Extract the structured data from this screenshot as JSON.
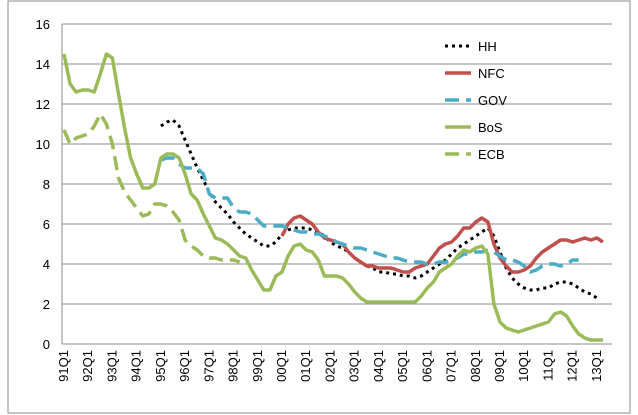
{
  "chart_data": {
    "type": "line",
    "categories": [
      "91Q1",
      null,
      null,
      null,
      "92Q1",
      null,
      null,
      null,
      "93Q1",
      null,
      null,
      null,
      "94Q1",
      null,
      null,
      null,
      "95Q1",
      null,
      null,
      null,
      "96Q1",
      null,
      null,
      null,
      "97Q1",
      null,
      null,
      null,
      "98Q1",
      null,
      null,
      null,
      "99Q1",
      null,
      null,
      null,
      "00Q1",
      null,
      null,
      null,
      "01Q1",
      null,
      null,
      null,
      "02Q1",
      null,
      null,
      null,
      "03Q1",
      null,
      null,
      null,
      "04Q1",
      null,
      null,
      null,
      "05Q1",
      null,
      null,
      null,
      "06Q1",
      null,
      null,
      null,
      "07Q1",
      null,
      null,
      null,
      "08Q1",
      null,
      null,
      null,
      "09Q1",
      null,
      null,
      null,
      "10Q1",
      null,
      null,
      null,
      "11Q1",
      null,
      null,
      null,
      "12Q1",
      null,
      null,
      null,
      "13Q1",
      null
    ],
    "ylim": [
      0,
      16
    ],
    "yticks": [
      0,
      2,
      4,
      6,
      8,
      10,
      12,
      14,
      16
    ],
    "grid": true,
    "legend": "top-right",
    "series": [
      {
        "name": "HH",
        "color": "#000000",
        "style": "dotted",
        "values": [
          null,
          null,
          null,
          null,
          null,
          null,
          null,
          null,
          null,
          null,
          null,
          null,
          null,
          null,
          null,
          null,
          10.9,
          11.1,
          11.2,
          10.9,
          10.2,
          9.5,
          8.8,
          8.2,
          7.6,
          7.1,
          6.8,
          6.5,
          6.1,
          5.8,
          5.5,
          5.3,
          5.1,
          4.9,
          4.9,
          5.1,
          5.5,
          5.7,
          5.8,
          5.8,
          5.8,
          5.7,
          5.6,
          5.4,
          5.1,
          4.9,
          4.8,
          4.6,
          4.3,
          4.1,
          3.9,
          3.8,
          3.6,
          3.6,
          3.5,
          3.5,
          3.4,
          3.4,
          3.3,
          3.4,
          3.6,
          3.8,
          4.0,
          4.2,
          4.5,
          4.8,
          5.0,
          5.2,
          5.4,
          5.6,
          5.8,
          5.4,
          4.6,
          3.8,
          3.3,
          3.0,
          2.8,
          2.7,
          2.7,
          2.8,
          2.8,
          3.0,
          3.1,
          3.1,
          3.0,
          2.8,
          2.6,
          2.5,
          2.3,
          null
        ]
      },
      {
        "name": "NFC",
        "color": "#c0504d",
        "style": "solid",
        "values": [
          null,
          null,
          null,
          null,
          null,
          null,
          null,
          null,
          null,
          null,
          null,
          null,
          null,
          null,
          null,
          null,
          null,
          null,
          null,
          null,
          null,
          null,
          null,
          null,
          null,
          null,
          null,
          null,
          null,
          null,
          null,
          null,
          null,
          null,
          null,
          null,
          5.4,
          6.0,
          6.3,
          6.4,
          6.2,
          6.0,
          5.6,
          5.3,
          5.2,
          5.1,
          5.0,
          4.6,
          4.3,
          4.1,
          3.9,
          3.9,
          3.8,
          3.8,
          3.8,
          3.7,
          3.6,
          3.6,
          3.8,
          3.9,
          4.0,
          4.4,
          4.8,
          5.0,
          5.1,
          5.4,
          5.8,
          5.8,
          6.1,
          6.3,
          6.1,
          5.0,
          4.3,
          3.9,
          3.6,
          3.6,
          3.7,
          3.9,
          4.3,
          4.6,
          4.8,
          5.0,
          5.2,
          5.2,
          5.1,
          5.2,
          5.3,
          5.2,
          5.3,
          5.1
        ]
      },
      {
        "name": "GOV",
        "color": "#4bacc6",
        "style": "dashed",
        "values": [
          null,
          null,
          null,
          null,
          null,
          null,
          null,
          null,
          null,
          null,
          null,
          null,
          null,
          null,
          null,
          null,
          9.2,
          9.3,
          9.3,
          9.0,
          8.8,
          8.8,
          8.8,
          8.5,
          7.5,
          7.3,
          7.3,
          7.3,
          6.8,
          6.6,
          6.6,
          6.5,
          6.2,
          5.9,
          5.9,
          5.9,
          5.9,
          5.8,
          5.7,
          5.6,
          5.6,
          5.5,
          5.5,
          5.4,
          5.3,
          5.1,
          5.0,
          4.9,
          4.8,
          4.8,
          4.7,
          4.6,
          4.5,
          4.4,
          4.3,
          4.3,
          4.2,
          4.1,
          4.1,
          4.1,
          4.0,
          4.0,
          4.1,
          4.1,
          4.2,
          4.3,
          4.5,
          4.5,
          4.6,
          4.6,
          4.7,
          4.6,
          4.4,
          4.2,
          4.2,
          4.1,
          3.9,
          3.6,
          3.7,
          3.9,
          4.0,
          4.0,
          3.9,
          4.0,
          4.2,
          4.2,
          null,
          null,
          null,
          null
        ]
      },
      {
        "name": "BoS",
        "color": "#9bbb59",
        "style": "solid",
        "values": [
          14.5,
          13.0,
          12.6,
          12.7,
          12.7,
          12.6,
          13.5,
          14.5,
          14.3,
          12.5,
          10.8,
          9.3,
          8.5,
          7.8,
          7.8,
          8.0,
          9.3,
          9.5,
          9.5,
          9.3,
          8.5,
          7.5,
          7.2,
          6.5,
          5.9,
          5.3,
          5.2,
          5.0,
          4.7,
          4.4,
          4.3,
          3.7,
          3.2,
          2.7,
          2.7,
          3.4,
          3.6,
          4.4,
          4.9,
          5.0,
          4.7,
          4.6,
          4.2,
          3.4,
          3.4,
          3.4,
          3.3,
          3.0,
          2.6,
          2.3,
          2.1,
          2.1,
          2.1,
          2.1,
          2.1,
          2.1,
          2.1,
          2.1,
          2.1,
          2.4,
          2.8,
          3.1,
          3.6,
          3.8,
          4.0,
          4.4,
          4.7,
          4.6,
          4.8,
          4.9,
          4.5,
          2.0,
          1.1,
          0.8,
          0.7,
          0.6,
          0.7,
          0.8,
          0.9,
          1.0,
          1.1,
          1.5,
          1.6,
          1.4,
          0.9,
          0.5,
          0.3,
          0.2,
          0.2,
          0.2
        ]
      },
      {
        "name": "ECB",
        "color": "#9bbb59",
        "style": "dashed",
        "values": [
          10.7,
          10.0,
          10.3,
          10.4,
          10.5,
          10.9,
          11.5,
          11.0,
          10.0,
          8.3,
          7.6,
          7.2,
          6.8,
          6.4,
          6.5,
          7.0,
          7.0,
          6.9,
          6.6,
          6.2,
          5.2,
          4.9,
          4.7,
          4.4,
          4.3,
          4.3,
          4.2,
          4.2,
          4.2,
          4.1,
          null,
          null,
          null,
          null,
          null,
          null,
          null,
          null,
          null,
          null,
          null,
          null,
          null,
          null,
          null,
          null,
          null,
          null,
          null,
          null,
          null,
          null,
          null,
          null,
          null,
          null,
          null,
          null,
          null,
          null,
          null,
          null,
          null,
          null,
          null,
          null,
          null,
          null,
          null,
          null,
          null,
          null,
          null,
          null,
          null,
          null,
          null,
          null,
          null,
          null,
          null,
          null,
          null,
          null,
          null,
          null,
          null,
          null,
          null,
          null
        ]
      }
    ]
  }
}
